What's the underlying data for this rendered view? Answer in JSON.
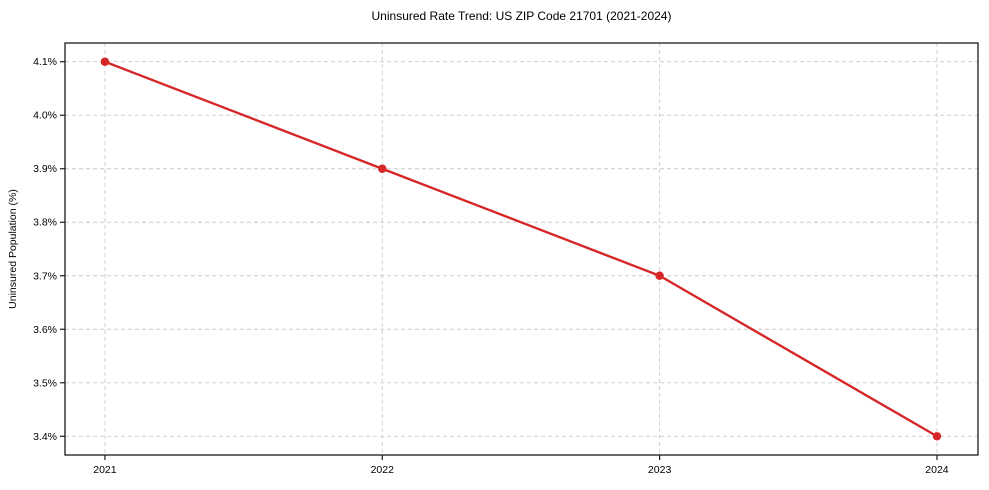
{
  "chart_data": {
    "type": "line",
    "title": "Uninsured Rate Trend: US ZIP Code 21701 (2021-2024)",
    "xlabel": "",
    "ylabel": "Uninsured Population (%)",
    "x": [
      2021,
      2022,
      2023,
      2024
    ],
    "x_tick_labels": [
      "2021",
      "2022",
      "2023",
      "2024"
    ],
    "values": [
      4.1,
      3.9,
      3.7,
      3.4
    ],
    "y_ticks": [
      3.4,
      3.5,
      3.6,
      3.7,
      3.8,
      3.9,
      4.0,
      4.1
    ],
    "y_tick_labels": [
      "3.4%",
      "3.5%",
      "3.6%",
      "3.7%",
      "3.8%",
      "3.9%",
      "4.0%",
      "4.1%"
    ],
    "xlim": [
      2020.856,
      2024.148
    ],
    "ylim": [
      3.365,
      4.135
    ],
    "grid": true,
    "grid_style": "dashed",
    "legend_position": "none",
    "colors": {
      "line": "#d62728",
      "marker": "#d62728",
      "grid": "#cccccc",
      "spine": "#1a1a1a",
      "tick": "#1a1a1a",
      "text": "#000000",
      "background": "#ffffff"
    }
  }
}
